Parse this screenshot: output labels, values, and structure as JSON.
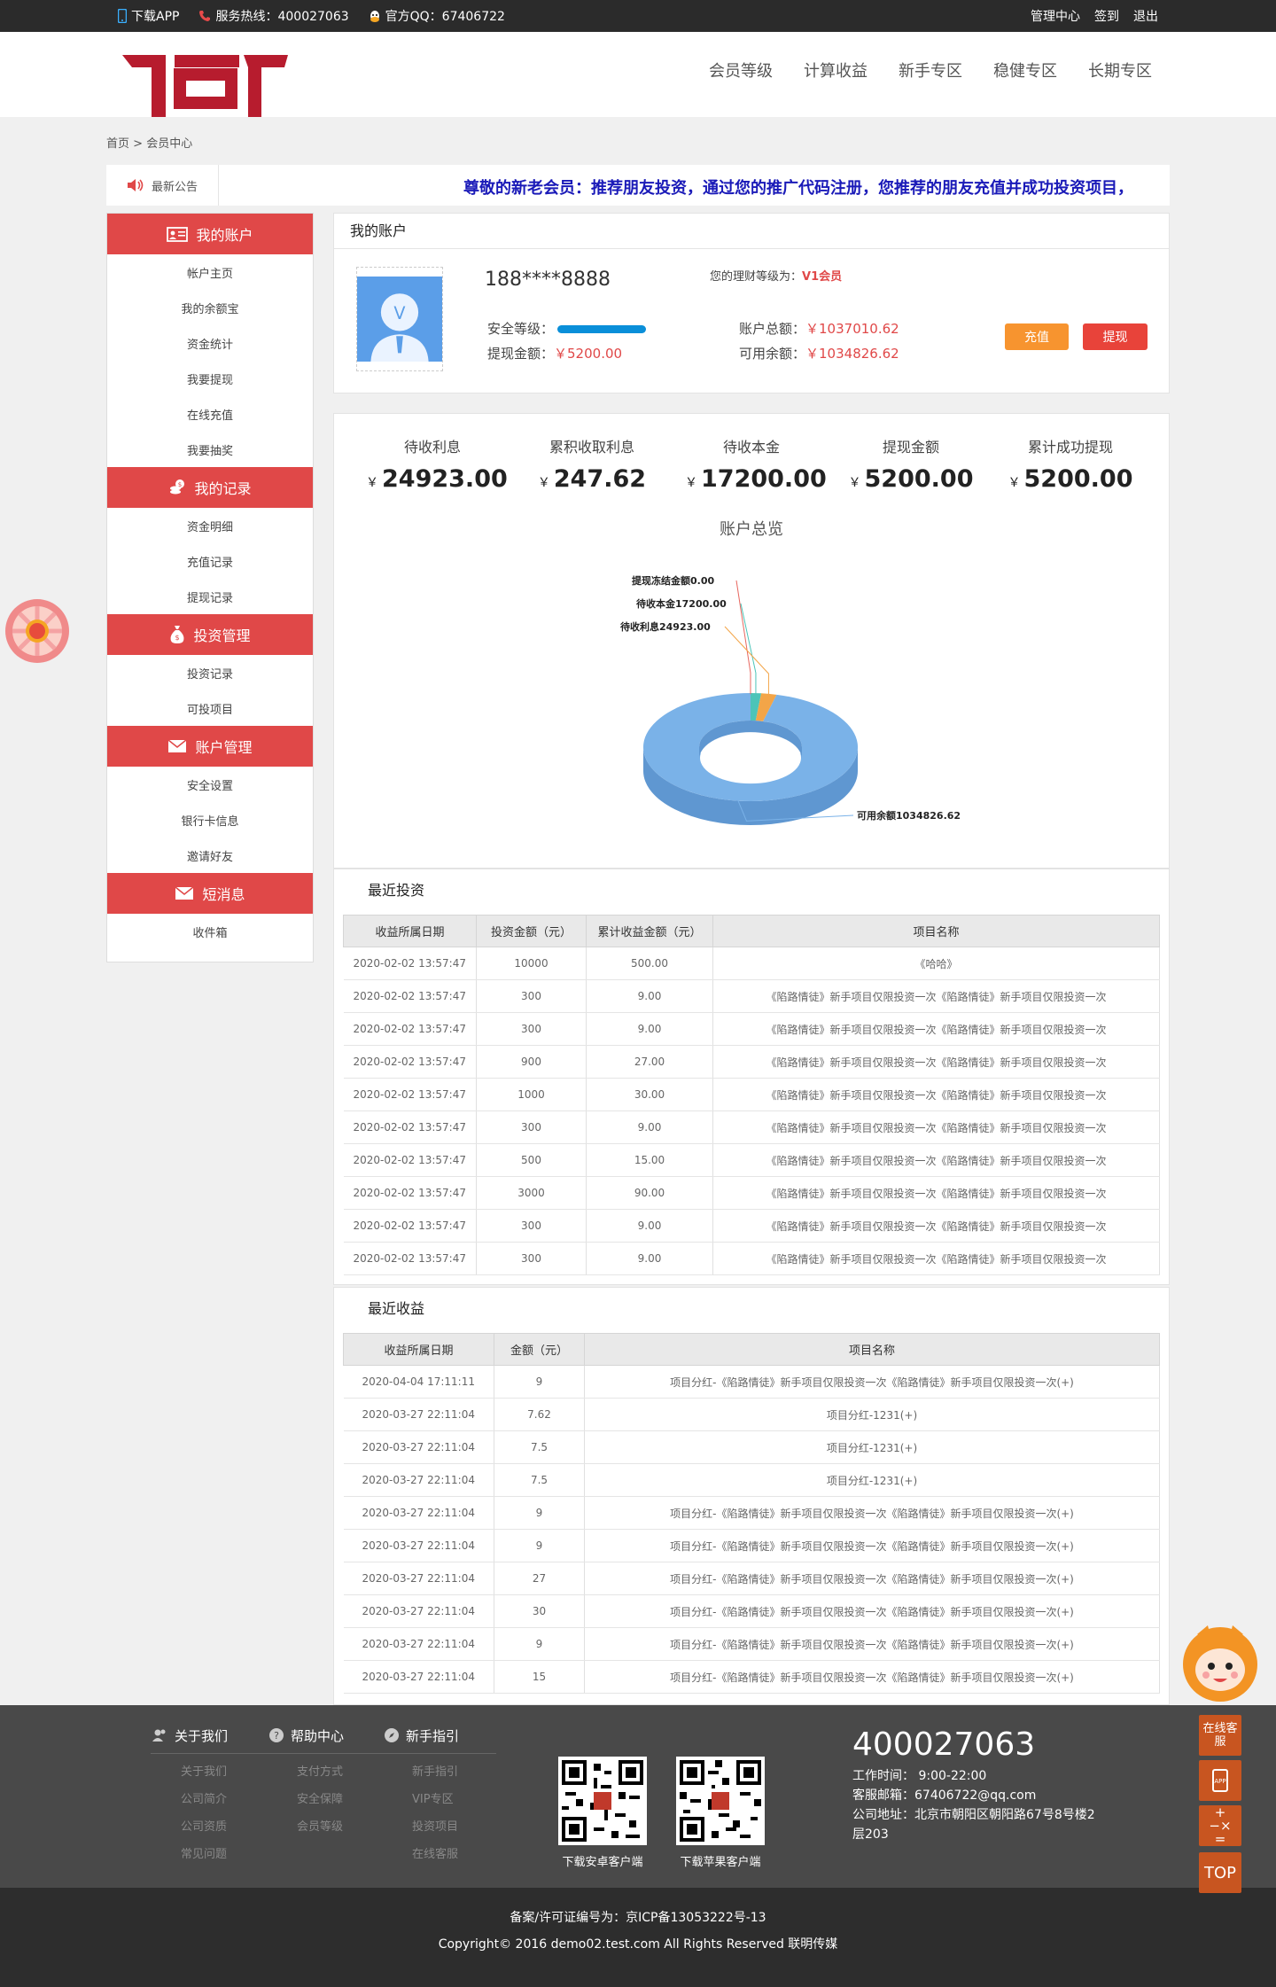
{
  "topbar": {
    "download_app": "下载APP",
    "hotline": "服务热线：400027063",
    "qq": "官方QQ：67406722",
    "links": [
      "管理中心",
      "签到",
      "退出"
    ]
  },
  "nav": [
    "会员等级",
    "计算收益",
    "新手专区",
    "稳健专区",
    "长期专区"
  ],
  "breadcrumb": {
    "home": "首页",
    "sep": ">",
    "current": "会员中心"
  },
  "notice": {
    "label": "最新公告",
    "text": "尊敬的新老会员：推荐朋友投资，通过您的推广代码注册，您推荐的朋友充值并成功投资项目，"
  },
  "sidebar": [
    {
      "title": "我的账户",
      "icon": "id-card-icon",
      "items": [
        "帐户主页",
        "我的余额宝",
        "资金统计",
        "我要提现",
        "在线充值",
        "我要抽奖"
      ]
    },
    {
      "title": "我的记录",
      "icon": "coins-icon",
      "items": [
        "资金明细",
        "充值记录",
        "提现记录"
      ]
    },
    {
      "title": "投资管理",
      "icon": "money-bag-icon",
      "items": [
        "投资记录",
        "可投项目"
      ]
    },
    {
      "title": "账户管理",
      "icon": "envelope-icon",
      "items": [
        "安全设置",
        "银行卡信息",
        "邀请好友"
      ]
    },
    {
      "title": "短消息",
      "icon": "envelope-icon",
      "items": [
        "收件箱"
      ]
    }
  ],
  "account": {
    "title": "我的账户",
    "phone": "188****8888",
    "level_label": "您的理财等级为：",
    "level": "V1会员",
    "security_label": "安全等级：",
    "withdraw_label": "提现金额：",
    "withdraw_value": "￥5200.00",
    "total_label": "账户总额：",
    "total_value": "￥1037010.62",
    "available_label": "可用余额：",
    "available_value": "￥1034826.62",
    "recharge_btn": "充值",
    "withdraw_btn": "提现"
  },
  "stats": [
    {
      "label": "待收利息",
      "currency": "￥",
      "value": "24923.00"
    },
    {
      "label": "累积收取利息",
      "currency": "￥",
      "value": "247.62"
    },
    {
      "label": "待收本金",
      "currency": "￥",
      "value": "17200.00"
    },
    {
      "label": "提现金额",
      "currency": "￥",
      "value": "5200.00"
    },
    {
      "label": "累计成功提现",
      "currency": "￥",
      "value": "5200.00"
    }
  ],
  "chart_data": {
    "type": "pie",
    "title": "账户总览",
    "slices": [
      {
        "label": "提现冻结金额",
        "value": 0.0,
        "color": "#e8675f"
      },
      {
        "label": "待收本金",
        "value": 17200.0,
        "color": "#4cc4b8"
      },
      {
        "label": "待收利息",
        "value": 24923.0,
        "color": "#f3a548"
      },
      {
        "label": "可用余额",
        "value": 1034826.62,
        "color": "#7ab2e8"
      }
    ],
    "callouts": [
      "提现冻结金额0.00",
      "待收本金17200.00",
      "待收利息24923.00",
      "可用余额1034826.62"
    ]
  },
  "investments": {
    "title": "最近投资",
    "headers": [
      "收益所属日期",
      "投资金额（元）",
      "累计收益金额（元）",
      "项目名称"
    ],
    "rows": [
      [
        "2020-02-02 13:57:47",
        "10000",
        "500.00",
        "《哈哈》"
      ],
      [
        "2020-02-02 13:57:47",
        "300",
        "9.00",
        "《陷路情徒》新手项目仅限投资一次《陷路情徒》新手项目仅限投资一次"
      ],
      [
        "2020-02-02 13:57:47",
        "300",
        "9.00",
        "《陷路情徒》新手项目仅限投资一次《陷路情徒》新手项目仅限投资一次"
      ],
      [
        "2020-02-02 13:57:47",
        "900",
        "27.00",
        "《陷路情徒》新手项目仅限投资一次《陷路情徒》新手项目仅限投资一次"
      ],
      [
        "2020-02-02 13:57:47",
        "1000",
        "30.00",
        "《陷路情徒》新手项目仅限投资一次《陷路情徒》新手项目仅限投资一次"
      ],
      [
        "2020-02-02 13:57:47",
        "300",
        "9.00",
        "《陷路情徒》新手项目仅限投资一次《陷路情徒》新手项目仅限投资一次"
      ],
      [
        "2020-02-02 13:57:47",
        "500",
        "15.00",
        "《陷路情徒》新手项目仅限投资一次《陷路情徒》新手项目仅限投资一次"
      ],
      [
        "2020-02-02 13:57:47",
        "3000",
        "90.00",
        "《陷路情徒》新手项目仅限投资一次《陷路情徒》新手项目仅限投资一次"
      ],
      [
        "2020-02-02 13:57:47",
        "300",
        "9.00",
        "《陷路情徒》新手项目仅限投资一次《陷路情徒》新手项目仅限投资一次"
      ],
      [
        "2020-02-02 13:57:47",
        "300",
        "9.00",
        "《陷路情徒》新手项目仅限投资一次《陷路情徒》新手项目仅限投资一次"
      ]
    ]
  },
  "earnings": {
    "title": "最近收益",
    "headers": [
      "收益所属日期",
      "金额（元）",
      "项目名称"
    ],
    "rows": [
      [
        "2020-04-04 17:11:11",
        "9",
        "项目分红-《陷路情徒》新手项目仅限投资一次《陷路情徒》新手项目仅限投资一次(+)"
      ],
      [
        "2020-03-27 22:11:04",
        "7.62",
        "项目分红-1231(+)"
      ],
      [
        "2020-03-27 22:11:04",
        "7.5",
        "项目分红-1231(+)"
      ],
      [
        "2020-03-27 22:11:04",
        "7.5",
        "项目分红-1231(+)"
      ],
      [
        "2020-03-27 22:11:04",
        "9",
        "项目分红-《陷路情徒》新手项目仅限投资一次《陷路情徒》新手项目仅限投资一次(+)"
      ],
      [
        "2020-03-27 22:11:04",
        "9",
        "项目分红-《陷路情徒》新手项目仅限投资一次《陷路情徒》新手项目仅限投资一次(+)"
      ],
      [
        "2020-03-27 22:11:04",
        "27",
        "项目分红-《陷路情徒》新手项目仅限投资一次《陷路情徒》新手项目仅限投资一次(+)"
      ],
      [
        "2020-03-27 22:11:04",
        "30",
        "项目分红-《陷路情徒》新手项目仅限投资一次《陷路情徒》新手项目仅限投资一次(+)"
      ],
      [
        "2020-03-27 22:11:04",
        "9",
        "项目分红-《陷路情徒》新手项目仅限投资一次《陷路情徒》新手项目仅限投资一次(+)"
      ],
      [
        "2020-03-27 22:11:04",
        "15",
        "项目分红-《陷路情徒》新手项目仅限投资一次《陷路情徒》新手项目仅限投资一次(+)"
      ]
    ]
  },
  "footer": {
    "cols": [
      {
        "title": "关于我们",
        "icon": "users-icon",
        "links": [
          "关于我们",
          "公司简介",
          "公司资质",
          "常见问题"
        ]
      },
      {
        "title": "帮助中心",
        "icon": "help-icon",
        "links": [
          "支付方式",
          "安全保障",
          "会员等级"
        ]
      },
      {
        "title": "新手指引",
        "icon": "compass-icon",
        "links": [
          "新手指引",
          "VIP专区",
          "投资项目",
          "在线客服"
        ]
      }
    ],
    "qr_android": "下载安卓客户端",
    "qr_ios": "下载苹果客户端",
    "phone": "400027063",
    "hours": "工作时间：   9:00-22:00",
    "email": "客服邮箱：67406722@qq.com",
    "address": "公司地址：北京市朝阳区朝阳路67号8号楼2层203",
    "icp": "备案/许可证编号为：京ICP备13053222号-13",
    "copyright": "Copyright© 2016 demo02.test.com All Rights Reserved 联明传媒"
  },
  "side_tools": {
    "service": "在线客服",
    "app": "APP",
    "calc": "+−×=",
    "top": "TOP"
  }
}
